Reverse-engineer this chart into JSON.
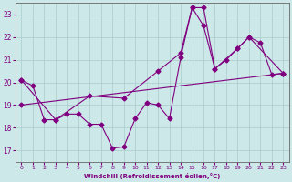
{
  "xlabel": "Windchill (Refroidissement éolien,°C)",
  "bg_color": "#cce8e8",
  "line_color": "#800080",
  "grid_color": "#aacccc",
  "spine_color": "#666666",
  "xlim": [
    -0.5,
    23.5
  ],
  "ylim": [
    16.5,
    23.5
  ],
  "xticks": [
    0,
    1,
    2,
    3,
    4,
    5,
    6,
    7,
    8,
    9,
    10,
    11,
    12,
    13,
    14,
    15,
    16,
    17,
    18,
    19,
    20,
    21,
    22,
    23
  ],
  "yticks": [
    17,
    18,
    19,
    20,
    21,
    22,
    23
  ],
  "line1_x": [
    0,
    1,
    2,
    3,
    4,
    5,
    6,
    7,
    8,
    9,
    10,
    11,
    12,
    13,
    14,
    15,
    16,
    17,
    18,
    19,
    20,
    21,
    22,
    23
  ],
  "line1_y": [
    20.1,
    19.85,
    18.35,
    18.35,
    18.6,
    18.6,
    18.15,
    18.15,
    17.1,
    17.15,
    18.4,
    19.1,
    19.0,
    18.4,
    21.1,
    23.3,
    23.3,
    20.6,
    21.0,
    21.5,
    22.0,
    21.75,
    20.35,
    20.4
  ],
  "line2_x": [
    0,
    3,
    6,
    9,
    12,
    14,
    15,
    16,
    17,
    19,
    20,
    23
  ],
  "line2_y": [
    20.1,
    18.35,
    19.4,
    19.3,
    20.5,
    21.3,
    23.3,
    22.5,
    20.6,
    21.5,
    22.0,
    20.4
  ],
  "line3_x": [
    0,
    23
  ],
  "line3_y": [
    19.0,
    20.4
  ],
  "marker": "D",
  "markersize": 2.5,
  "linewidth": 0.8
}
